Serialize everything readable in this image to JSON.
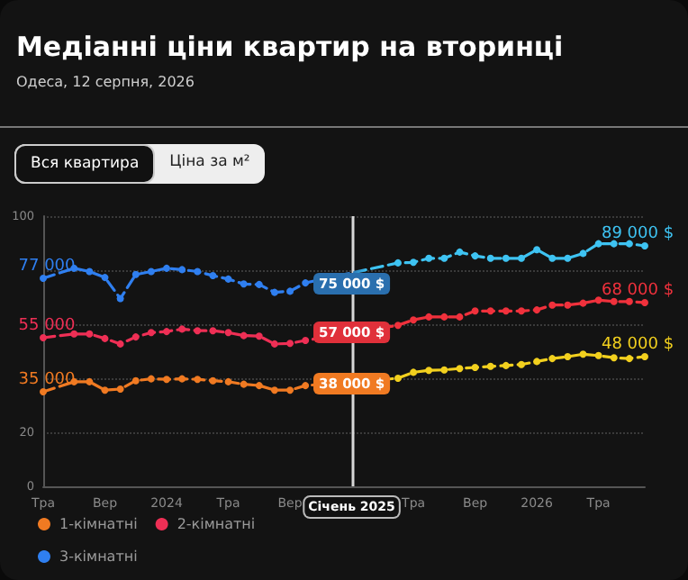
{
  "chart_data": {
    "type": "line",
    "title": "Медіанні ціни квартир на вторинці",
    "subtitle": "Одеса, 12 серпня, 2026",
    "annotations": [
      "Вся квартира",
      "Ціна за м²",
      {
        "text": "35 000",
        "x": "Тра",
        "y": 35
      },
      {
        "text": "55 000",
        "x": "Тра",
        "y": 55
      },
      {
        "text": "77 000",
        "x": "Тра",
        "y": 77
      },
      {
        "text": "38 000 $",
        "x": "Січень 2025",
        "y": 38
      },
      {
        "text": "57 000 $",
        "x": "Січень 2025",
        "y": 57
      },
      {
        "text": "75 000 $",
        "x": "Січень 2025",
        "y": 75
      },
      {
        "text": "48 000 $",
        "y": 48
      },
      {
        "text": "68 000 $",
        "y": 68
      },
      {
        "text": "89 000 $",
        "y": 89
      }
    ],
    "categories": [
      "Тра",
      null,
      null,
      null,
      "Вер",
      null,
      null,
      null,
      "2024",
      null,
      null,
      null,
      "Тра",
      null,
      null,
      null,
      "Вер",
      null,
      null,
      null,
      "Січень 2025",
      null,
      null,
      null,
      "Тра",
      null,
      null,
      null,
      "Вер",
      null,
      null,
      null,
      "2026",
      null,
      null,
      null,
      "Тра",
      null,
      null,
      null
    ],
    "series": [
      {
        "name": "1-кімнатні",
        "color": "#f07a22",
        "colors": [
          "#f07a22",
          "#f07a22",
          "#f07a22",
          "#f07a22",
          "#f07a22",
          "#f07a22",
          "#f07a22",
          "#f07a22",
          "#f07a22",
          "#f07a22",
          "#f07a22",
          "#f07a22",
          "#f07a22",
          "#f07a22",
          "#f07a22",
          "#f07a22",
          "#f07a22",
          "#f07a22",
          "#f07a22",
          "#f07a22",
          "#f07a22",
          "#f2d01e",
          "#f2d01e",
          "#f2d01e",
          "#f2d01e",
          "#f2d01e",
          "#f2d01e",
          "#f2d01e",
          "#f2d01e",
          "#f2d01e",
          "#f2d01e",
          "#f2d01e",
          "#f2d01e",
          "#f2d01e",
          "#f2d01e",
          "#f2d01e",
          "#f2d01e",
          "#f2d01e",
          "#f2d01e",
          "#f2d01e"
        ],
        "values": [
          35,
          null,
          38.7,
          38.7,
          35.6,
          36,
          39.1,
          39.8,
          39.6,
          39.8,
          39.6,
          39.1,
          38.7,
          37.8,
          37.3,
          35.6,
          35.6,
          37.3,
          null,
          null,
          null,
          null,
          null,
          40,
          42.2,
          42.9,
          43.1,
          43.6,
          44,
          44.4,
          44.7,
          45.1,
          46.2,
          47.3,
          48,
          48.9,
          48.4,
          47.6,
          47.3,
          48
        ]
      },
      {
        "name": "2-кімнатні",
        "color": "#ee2f55",
        "colors": [
          "#ee2f55",
          "#ee2f55",
          "#ee2f55",
          "#ee2f55",
          "#ee2f55",
          "#ee2f55",
          "#ee2f55",
          "#ee2f55",
          "#ee2f55",
          "#ee2f55",
          "#ee2f55",
          "#ee2f55",
          "#ee2f55",
          "#ee2f55",
          "#ee2f55",
          "#ee2f55",
          "#ee2f55",
          "#ee2f55",
          "#ee2f55",
          "#ee2f55",
          "#e0303a",
          "#f0313c",
          "#f0313c",
          "#f0313c",
          "#f0313c",
          "#f0313c",
          "#f0313c",
          "#f0313c",
          "#f0313c",
          "#f0313c",
          "#f0313c",
          "#f0313c",
          "#f0313c",
          "#f0313c",
          "#f0313c",
          "#f0313c",
          "#f0313c",
          "#f0313c",
          "#f0313c",
          "#f0313c"
        ],
        "values": [
          55,
          null,
          56.4,
          56.4,
          54.7,
          52.7,
          55.3,
          56.9,
          57.3,
          58.2,
          57.6,
          57.6,
          56.9,
          55.8,
          55.6,
          52.7,
          52.9,
          54,
          null,
          null,
          null,
          null,
          null,
          59.6,
          61.6,
          62.7,
          62.7,
          62.7,
          64.9,
          64.9,
          64.9,
          64.9,
          65.3,
          67.1,
          67.1,
          67.8,
          68.9,
          68.4,
          68.4,
          68
        ]
      },
      {
        "name": "3-кімнатні",
        "color": "#2f7ff0",
        "colors": [
          "#2f7ff0",
          "#2f7ff0",
          "#2f7ff0",
          "#2f7ff0",
          "#2f7ff0",
          "#2f7ff0",
          "#2f7ff0",
          "#2f7ff0",
          "#2f7ff0",
          "#2f7ff0",
          "#2f7ff0",
          "#2f7ff0",
          "#2f7ff0",
          "#2f7ff0",
          "#2f7ff0",
          "#2f7ff0",
          "#2f7ff0",
          "#2f7ff0",
          "#2f7ff0",
          "#2f7ff0",
          "#2a6fae",
          "#3ec3f2",
          "#3ec3f2",
          "#3ec3f2",
          "#3ec3f2",
          "#3ec3f2",
          "#3ec3f2",
          "#3ec3f2",
          "#3ec3f2",
          "#3ec3f2",
          "#3ec3f2",
          "#3ec3f2",
          "#3ec3f2",
          "#3ec3f2",
          "#3ec3f2",
          "#3ec3f2",
          "#3ec3f2",
          "#3ec3f2",
          "#3ec3f2",
          "#3ec3f2"
        ],
        "values": [
          77,
          null,
          80.7,
          79.5,
          77.3,
          69.5,
          78.4,
          79.5,
          80.7,
          80.2,
          79.5,
          78,
          76.7,
          74.9,
          74.7,
          71.8,
          72.2,
          75.3,
          null,
          null,
          null,
          null,
          null,
          82.7,
          82.9,
          84.4,
          84.4,
          86.7,
          85.3,
          84.4,
          84.4,
          84.4,
          87.6,
          84.4,
          84.4,
          86.2,
          89.8,
          89.8,
          89.8,
          89
        ]
      }
    ],
    "ylim": [
      0,
      100
    ],
    "yticks": [
      0,
      20,
      {
        "value": 40,
        "label": null
      },
      {
        "value": 60,
        "label": null
      },
      {
        "value": 80,
        "label": null
      },
      100
    ],
    "ref_lines": [
      {
        "axis": "x",
        "value": "Січень 2025",
        "color": "#d8d8d8"
      }
    ],
    "grid": "y",
    "legend": "bottom left",
    "marker": "circle",
    "line_style": "dashed"
  }
}
